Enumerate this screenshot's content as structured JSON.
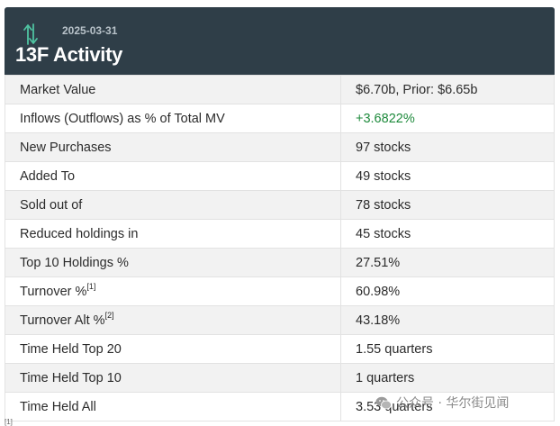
{
  "header": {
    "date": "2025-03-31",
    "title": "13F Activity",
    "icon": "up-down-arrows-icon"
  },
  "rows": [
    {
      "label": "Market Value",
      "value": "$6.70b, Prior: $6.65b"
    },
    {
      "label": "Inflows (Outflows) as % of Total MV",
      "value": "+3.6822%"
    },
    {
      "label": "New Purchases",
      "value": "97 stocks"
    },
    {
      "label": "Added To",
      "value": "49 stocks"
    },
    {
      "label": "Sold out of",
      "value": "78 stocks"
    },
    {
      "label": "Reduced holdings in",
      "value": "45 stocks"
    },
    {
      "label": "Top 10 Holdings %",
      "value": "27.51%"
    },
    {
      "label": "Turnover %",
      "note": "[1]",
      "value": "60.98%"
    },
    {
      "label": "Turnover Alt %",
      "note": "[2]",
      "value": "43.18%"
    },
    {
      "label": "Time Held Top 20",
      "value": "1.55 quarters"
    },
    {
      "label": "Time Held Top 10",
      "value": "1 quarters"
    },
    {
      "label": "Time Held All",
      "value": "3.53 quarters"
    }
  ],
  "watermark": {
    "text": "公众号 · 华尔街见闻",
    "icon": "wechat-icon"
  },
  "footnote": "[1]",
  "colors": {
    "header_bg": "#2f3e48",
    "positive": "#1e8a3c",
    "icon_accent": "#4fc3a1"
  }
}
